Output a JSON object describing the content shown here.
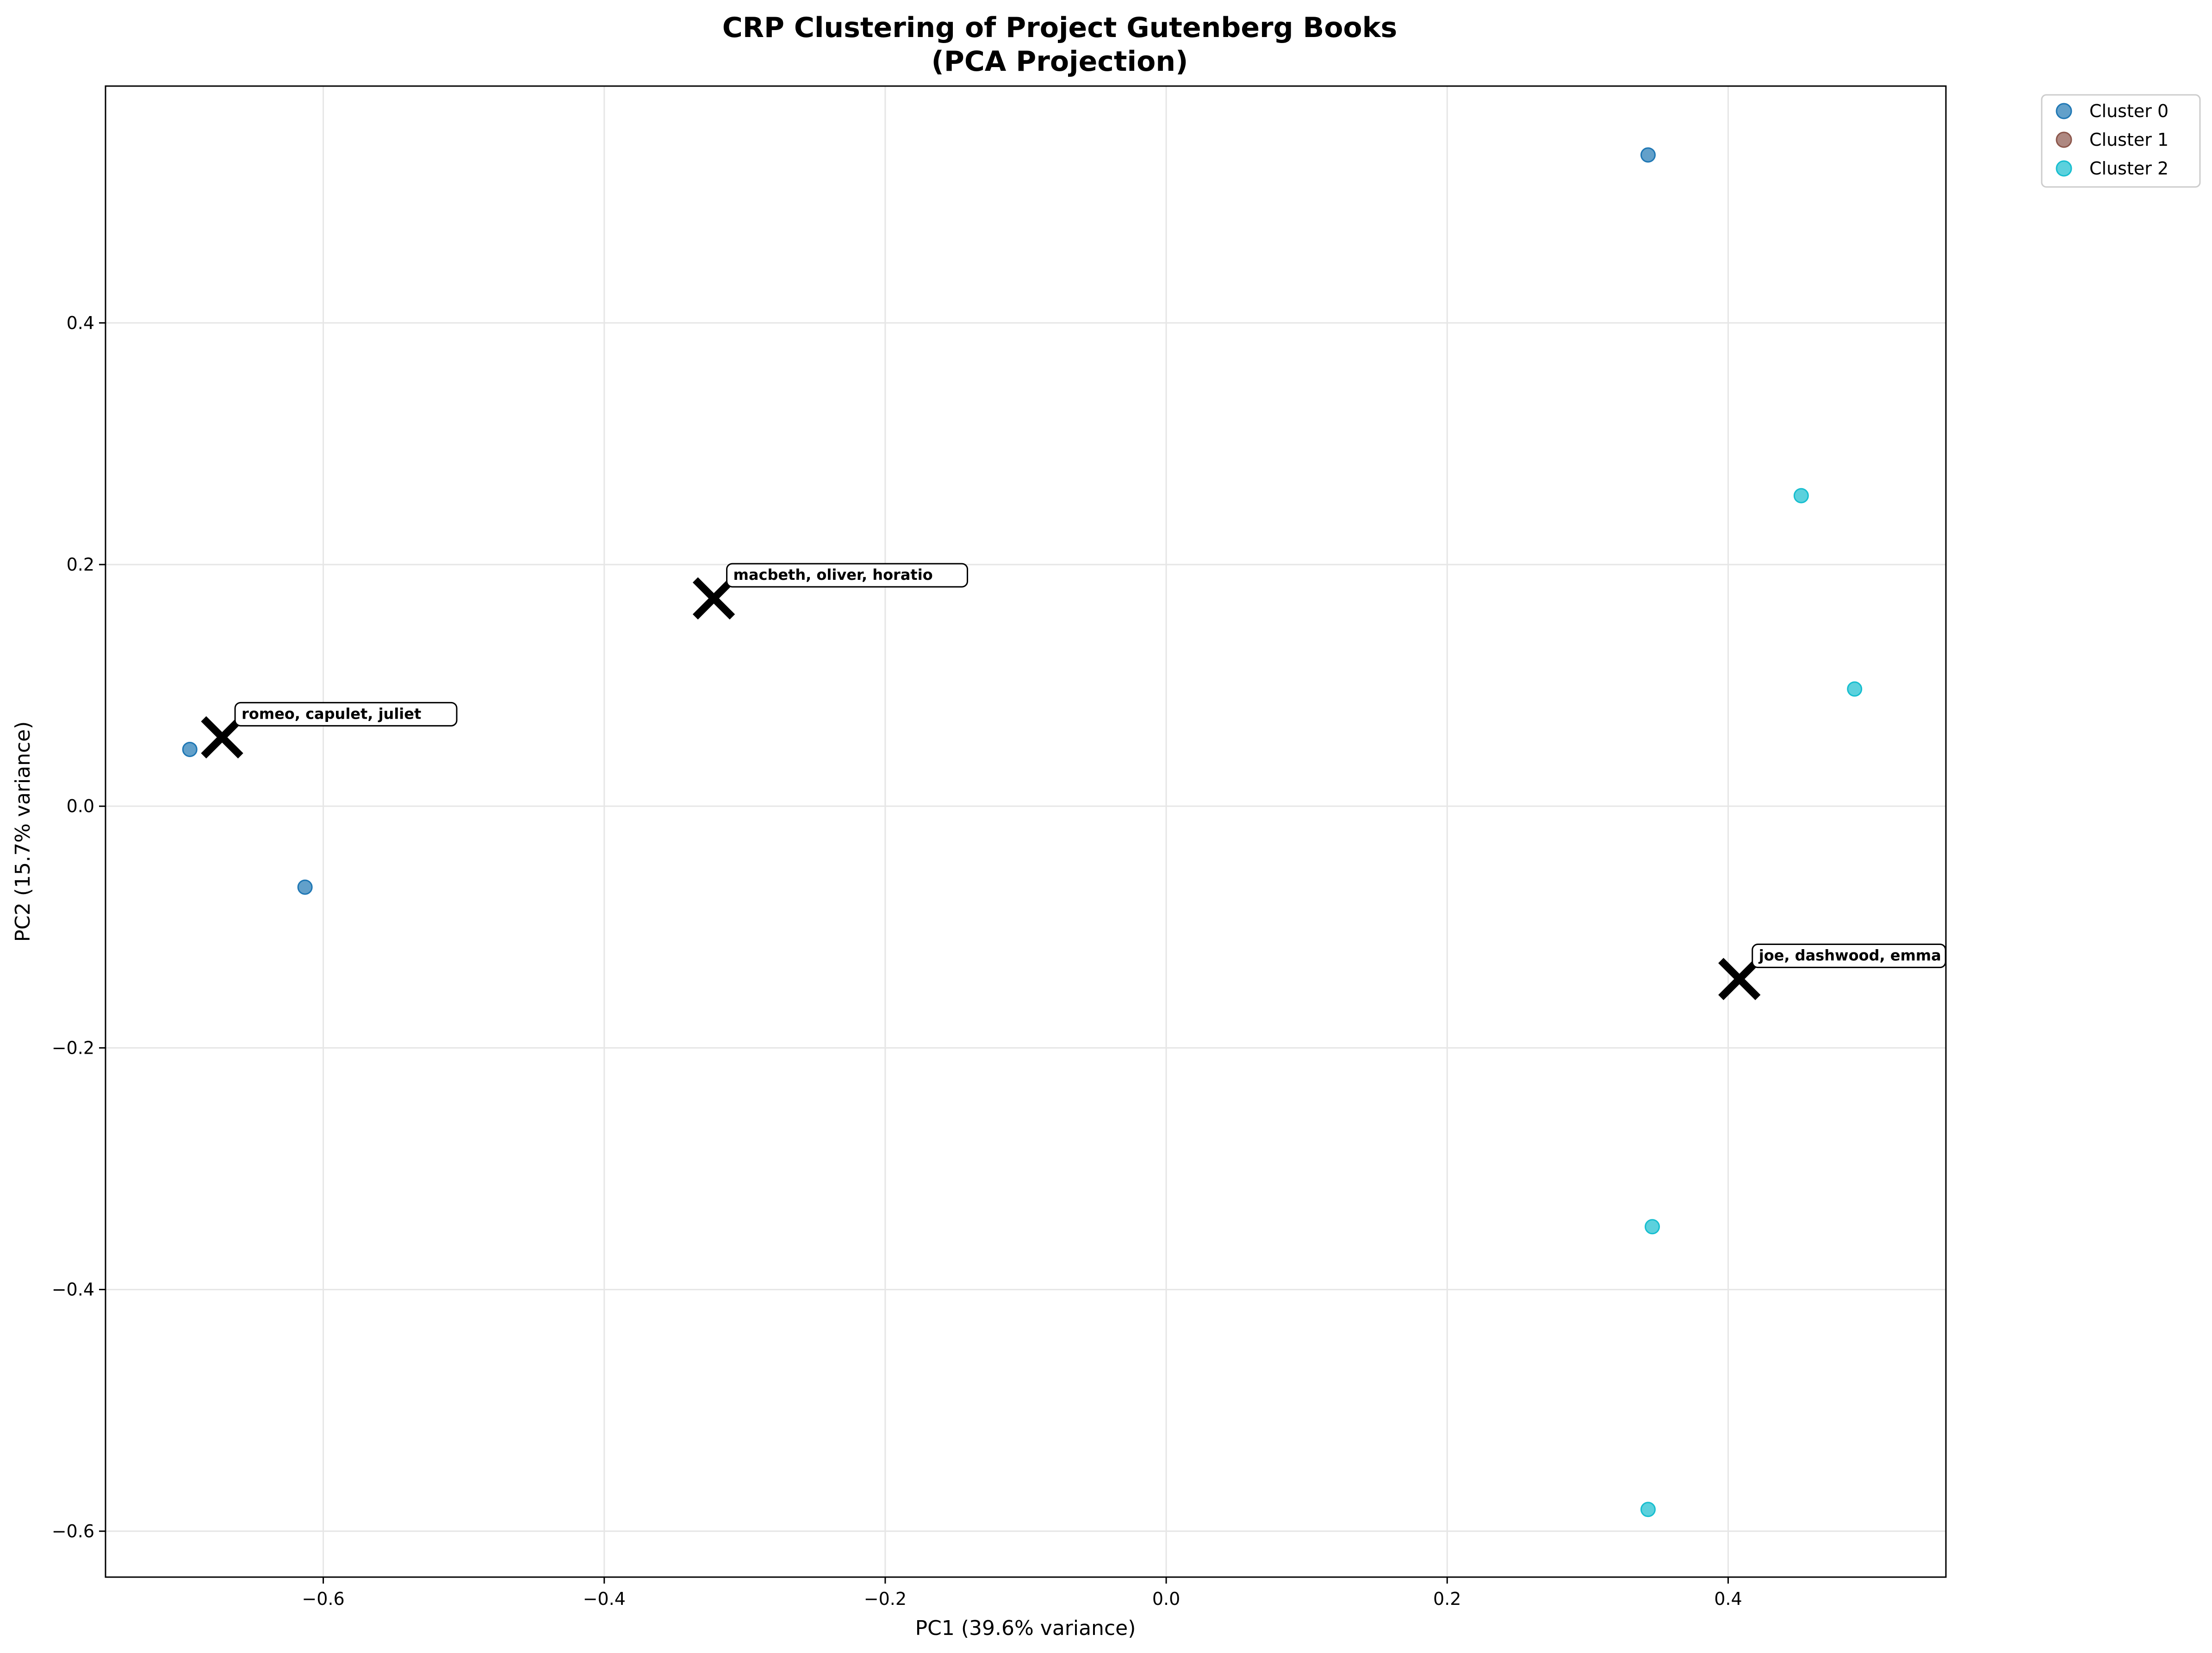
{
  "chart_data": {
    "type": "scatter",
    "title": "CRP Clustering of Project Gutenberg Books",
    "subtitle": "(PCA Projection)",
    "xlabel": "PC1 (39.6% variance)",
    "ylabel": "PC2 (15.7% variance)",
    "xlim": [
      -0.755,
      0.555
    ],
    "ylim": [
      -0.638,
      0.596
    ],
    "xticks": [
      -0.6,
      -0.4,
      -0.2,
      0.0,
      0.2,
      0.4
    ],
    "xtick_labels": [
      "−0.6",
      "−0.4",
      "−0.2",
      "0.0",
      "0.2",
      "0.4"
    ],
    "yticks": [
      -0.6,
      -0.4,
      -0.2,
      0.0,
      0.2,
      0.4
    ],
    "ytick_labels": [
      "−0.6",
      "−0.4",
      "−0.2",
      "0.0",
      "0.2",
      "0.4"
    ],
    "grid": true,
    "legend_position": "outside top-right",
    "series": [
      {
        "name": "Cluster 0",
        "color": "#1f77b4",
        "points": [
          [
            -0.695,
            0.047
          ],
          [
            -0.613,
            -0.067
          ],
          [
            0.343,
            0.539
          ]
        ]
      },
      {
        "name": "Cluster 1",
        "color": "#8c564b",
        "points": []
      },
      {
        "name": "Cluster 2",
        "color": "#17becf",
        "points": [
          [
            0.452,
            0.257
          ],
          [
            0.49,
            0.097
          ],
          [
            0.346,
            -0.348
          ],
          [
            0.343,
            -0.582
          ]
        ]
      }
    ],
    "centroids": [
      {
        "x": -0.672,
        "y": 0.057,
        "label": "romeo, capulet, juliet"
      },
      {
        "x": -0.322,
        "y": 0.172,
        "label": "macbeth, oliver, horatio"
      },
      {
        "x": 0.408,
        "y": -0.143,
        "label": "joe, dashwood, emma"
      }
    ]
  }
}
